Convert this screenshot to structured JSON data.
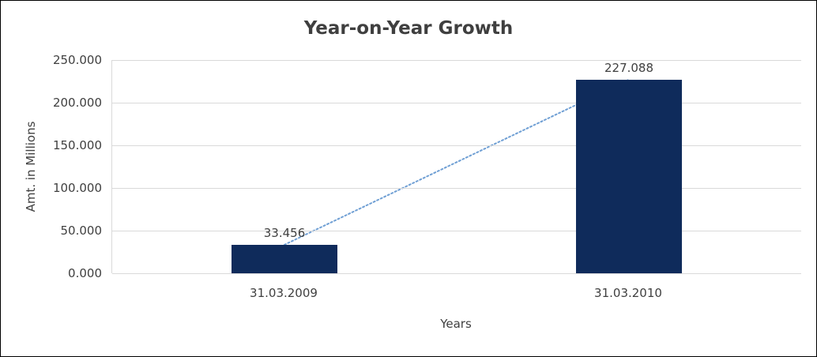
{
  "chart_data": {
    "type": "bar",
    "title": "Year-on-Year Growth",
    "xlabel": "Years",
    "ylabel": "Amt. in Millions",
    "categories": [
      "31.03.2009",
      "31.03.2010"
    ],
    "values": [
      33.456,
      227.088
    ],
    "data_labels": [
      "33.456",
      "227.088"
    ],
    "ylim": [
      0,
      250
    ],
    "ytick_step": 50,
    "ytick_labels": [
      "0.000",
      "50.000",
      "100.000",
      "150.000",
      "200.000",
      "250.000"
    ],
    "grid": "horizontal",
    "legend": "none",
    "trendline": {
      "present": true,
      "style": "dotted",
      "connects": "tops of the two bars"
    },
    "colors": {
      "bar": "#0f2b5b",
      "trendline": "#6f9fd4",
      "text": "#404040",
      "gridline": "#d9d9d9"
    }
  }
}
